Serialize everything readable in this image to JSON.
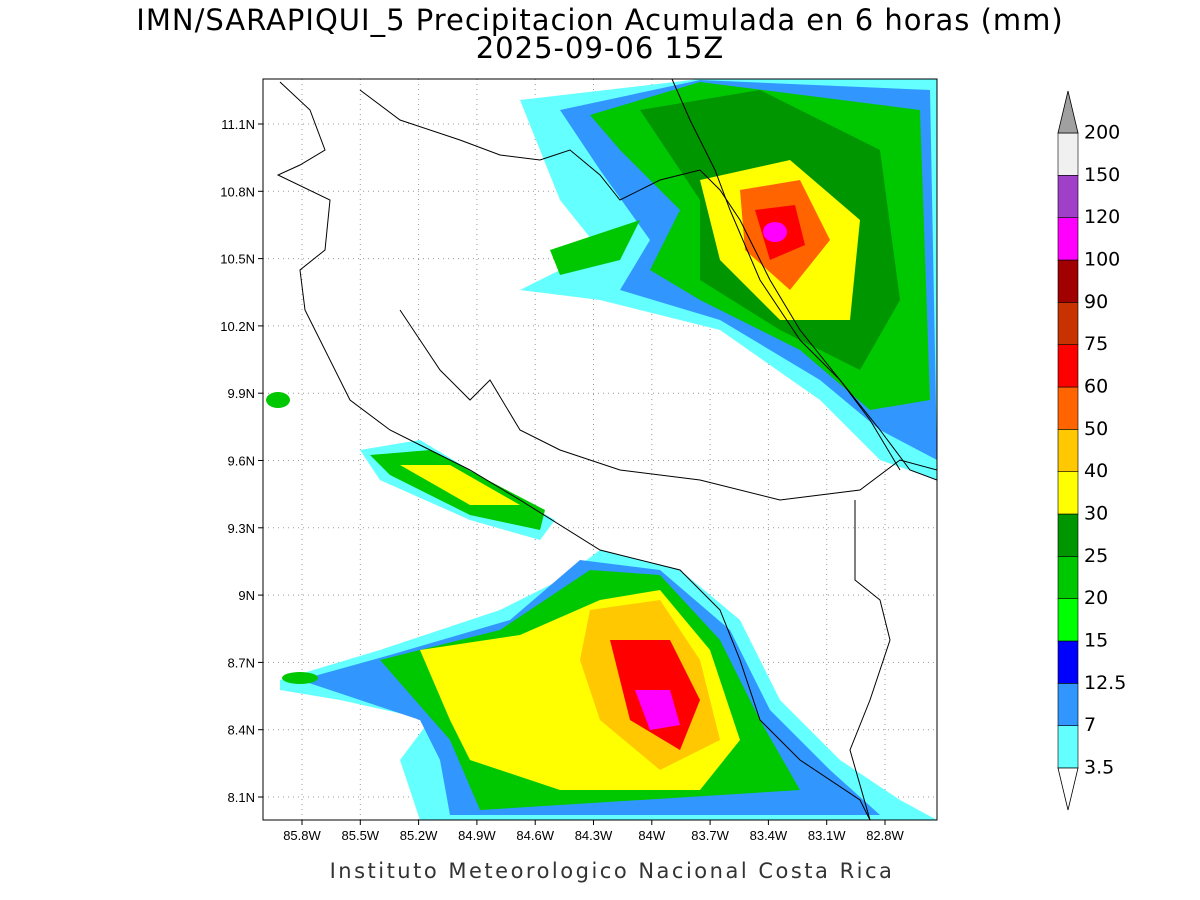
{
  "header": {
    "title": "IMN/SARAPIQUI_5 Precipitacion Acumulada en 6 horas (mm)",
    "subtitle": "2025-09-06 15Z"
  },
  "map": {
    "lon_ticks": [
      "85.8W",
      "85.5W",
      "85.2W",
      "84.9W",
      "84.6W",
      "84.3W",
      "84W",
      "83.7W",
      "83.4W",
      "83.1W",
      "82.8W"
    ],
    "lat_ticks": [
      "11.1N",
      "10.8N",
      "10.5N",
      "10.2N",
      "9.9N",
      "9.6N",
      "9.3N",
      "9N",
      "8.7N",
      "8.4N",
      "8.1N"
    ]
  },
  "colorbar": {
    "levels": [
      3.5,
      7,
      12.5,
      15,
      20,
      25,
      30,
      40,
      50,
      60,
      75,
      90,
      100,
      120,
      150,
      200
    ],
    "colors": [
      "#64ffff",
      "#3296ff",
      "#0000ff",
      "#00ff00",
      "#00c800",
      "#009600",
      "#ffff00",
      "#ffc800",
      "#ff6400",
      "#ff0000",
      "#c83200",
      "#a00000",
      "#ff00ff",
      "#a040c8",
      "#f0f0f0"
    ],
    "under_color": "#ffffff",
    "over_color": "#a0a0a0"
  },
  "footer": "Instituto Meteorologico Nacional Costa Rica"
}
